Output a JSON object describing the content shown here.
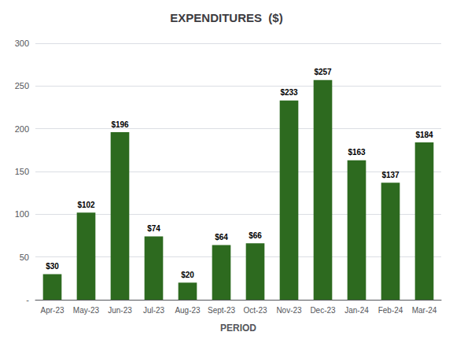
{
  "chart_data": {
    "type": "bar",
    "title": "EXPENDITURES  ($)",
    "xlabel": "PERIOD",
    "categories": [
      "Apr-23",
      "May-23",
      "Jun-23",
      "Jul-23",
      "Aug-23",
      "Sept-23",
      "Oct-23",
      "Nov-23",
      "Dec-23",
      "Jan-24",
      "Feb-24",
      "Mar-24"
    ],
    "values": [
      30,
      102,
      196,
      74,
      20,
      64,
      66,
      233,
      257,
      163,
      137,
      184
    ],
    "value_labels": [
      "$30",
      "$102",
      "$196",
      "$74",
      "$20",
      "$64",
      "$66",
      "$233",
      "$257",
      "$163",
      "$137",
      "$184"
    ],
    "data_labels": true,
    "color": "#2d6a1f",
    "ylim": [
      0,
      300
    ],
    "yticks": [
      {
        "value": 0,
        "label": "-"
      },
      50,
      100,
      150,
      200,
      250,
      300
    ],
    "grid": true
  }
}
